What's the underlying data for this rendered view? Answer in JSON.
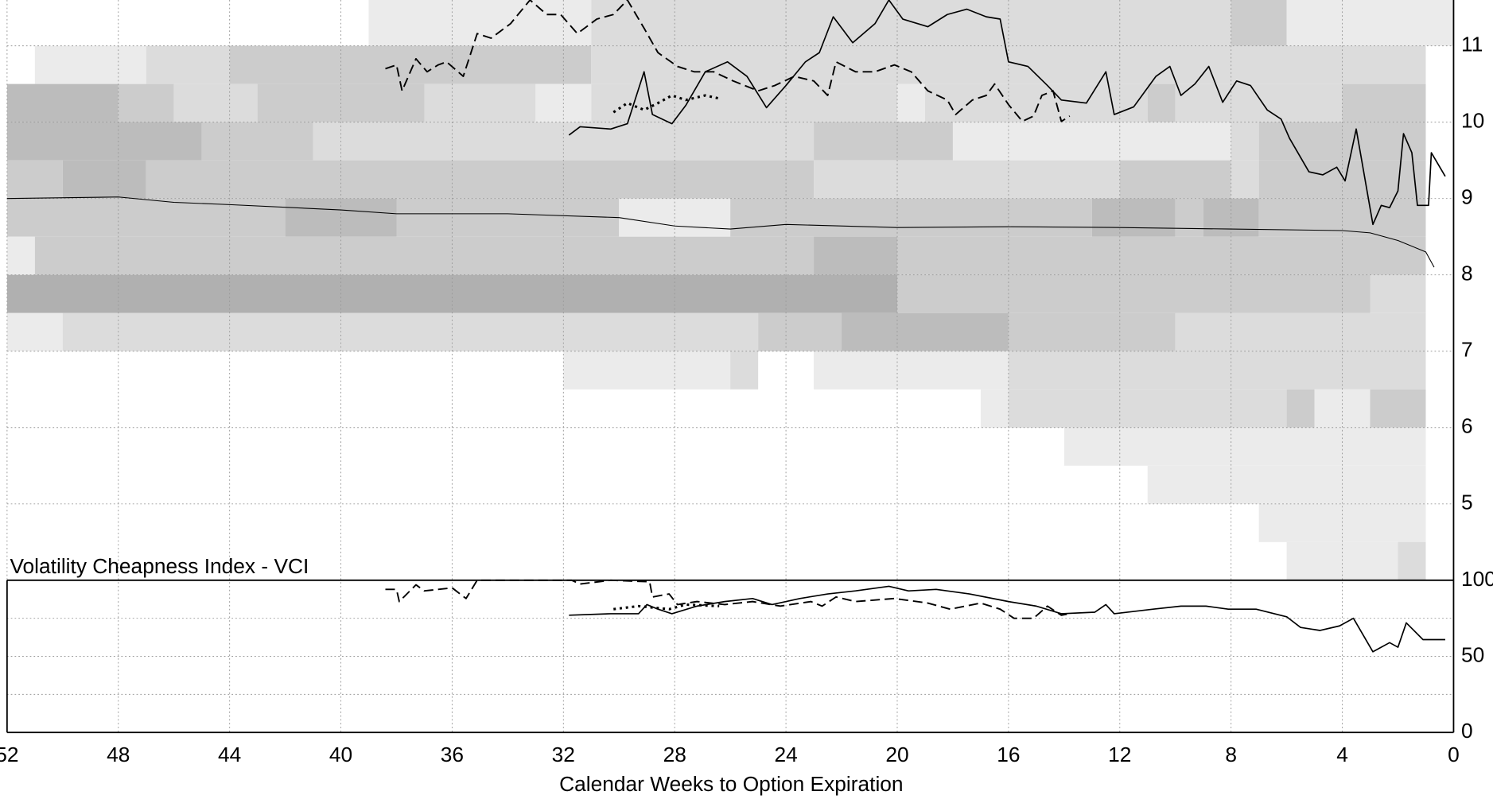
{
  "chart_data": [
    {
      "type": "heatmap",
      "ylim": [
        4,
        11.6
      ],
      "yticks": [
        5,
        6,
        7,
        8,
        9,
        10,
        11
      ],
      "grid": true,
      "heat_colors": [
        "#ebebeb",
        "#dcdcdc",
        "#cccccc",
        "#bcbcbc",
        "#b0b0b0"
      ],
      "cells": [
        [
          39,
          31,
          11,
          11.6,
          1
        ],
        [
          31,
          8,
          11,
          11.6,
          2
        ],
        [
          8,
          6,
          11,
          11.6,
          3
        ],
        [
          6,
          0,
          11,
          11.6,
          1
        ],
        [
          51,
          47,
          10.5,
          11,
          1
        ],
        [
          47,
          44,
          10.5,
          11,
          2
        ],
        [
          44,
          31,
          10.5,
          11,
          3
        ],
        [
          31,
          1,
          10.5,
          11,
          2
        ],
        [
          52,
          48,
          10,
          10.5,
          4
        ],
        [
          48,
          46,
          10,
          10.5,
          3
        ],
        [
          46,
          43,
          10,
          10.5,
          2
        ],
        [
          43,
          37,
          10,
          10.5,
          3
        ],
        [
          37,
          33,
          10,
          10.5,
          2
        ],
        [
          33,
          31,
          10,
          10.5,
          1
        ],
        [
          31,
          20,
          10,
          10.5,
          2
        ],
        [
          20,
          19,
          10,
          10.5,
          1
        ],
        [
          19,
          11,
          10,
          10.5,
          2
        ],
        [
          11,
          10,
          10,
          10.5,
          3
        ],
        [
          10,
          4,
          10,
          10.5,
          2
        ],
        [
          4,
          1,
          10,
          10.5,
          3
        ],
        [
          52,
          45,
          9.5,
          10,
          4
        ],
        [
          45,
          41,
          9.5,
          10,
          3
        ],
        [
          41,
          23,
          9.5,
          10,
          2
        ],
        [
          23,
          18,
          9.5,
          10,
          3
        ],
        [
          18,
          8,
          9.5,
          10,
          1
        ],
        [
          8,
          7,
          9.5,
          10,
          2
        ],
        [
          7,
          1,
          9.5,
          10,
          3
        ],
        [
          52,
          50,
          9,
          9.5,
          3
        ],
        [
          50,
          47,
          9,
          9.5,
          4
        ],
        [
          47,
          23,
          9,
          9.5,
          3
        ],
        [
          23,
          12,
          9,
          9.5,
          2
        ],
        [
          12,
          8,
          9,
          9.5,
          3
        ],
        [
          8,
          7,
          9,
          9.5,
          2
        ],
        [
          7,
          1,
          9,
          9.5,
          3
        ],
        [
          52,
          42,
          8.5,
          9,
          3
        ],
        [
          42,
          38,
          8.5,
          9,
          4
        ],
        [
          38,
          30,
          8.5,
          9,
          3
        ],
        [
          30,
          26,
          8.5,
          9,
          1
        ],
        [
          26,
          13,
          8.5,
          9,
          3
        ],
        [
          13,
          10,
          8.5,
          9,
          4
        ],
        [
          10,
          9,
          8.5,
          9,
          3
        ],
        [
          9,
          7,
          8.5,
          9,
          4
        ],
        [
          7,
          1,
          8.5,
          9,
          3
        ],
        [
          52,
          51,
          8,
          8.5,
          1
        ],
        [
          51,
          23,
          8,
          8.5,
          3
        ],
        [
          23,
          20,
          8,
          8.5,
          4
        ],
        [
          20,
          1,
          8,
          8.5,
          3
        ],
        [
          52,
          20,
          7.5,
          8,
          5
        ],
        [
          20,
          3,
          7.5,
          8,
          3
        ],
        [
          3,
          1,
          7.5,
          8,
          2
        ],
        [
          52,
          50,
          7,
          7.5,
          1
        ],
        [
          50,
          25,
          7,
          7.5,
          2
        ],
        [
          25,
          22,
          7,
          7.5,
          3
        ],
        [
          22,
          16,
          7,
          7.5,
          4
        ],
        [
          16,
          10,
          7,
          7.5,
          3
        ],
        [
          10,
          1,
          7,
          7.5,
          2
        ],
        [
          32,
          26,
          6.5,
          7,
          1
        ],
        [
          26,
          25,
          6.5,
          7,
          2
        ],
        [
          23,
          16,
          6.5,
          7,
          1
        ],
        [
          16,
          1,
          6.5,
          7,
          2
        ],
        [
          17,
          16,
          6,
          6.5,
          1
        ],
        [
          16,
          6,
          6,
          6.5,
          2
        ],
        [
          6,
          5,
          6,
          6.5,
          3
        ],
        [
          5,
          3,
          6,
          6.5,
          1
        ],
        [
          3,
          1,
          6,
          6.5,
          3
        ],
        [
          14,
          1,
          5.5,
          6,
          1
        ],
        [
          11,
          1,
          5,
          5.5,
          1
        ],
        [
          7,
          1,
          4.5,
          5,
          1
        ],
        [
          6,
          2,
          4,
          4.5,
          1
        ],
        [
          2,
          1,
          4,
          4.5,
          2
        ]
      ],
      "series": [
        {
          "style": "thin",
          "color": "#000000",
          "x": [
            52,
            48,
            46,
            44,
            40,
            38,
            34,
            30,
            28,
            26,
            24,
            20,
            16,
            12,
            8,
            4,
            3,
            2,
            1,
            0.7
          ],
          "values": [
            9.0,
            9.02,
            8.95,
            8.92,
            8.85,
            8.8,
            8.8,
            8.75,
            8.64,
            8.6,
            8.66,
            8.62,
            8.63,
            8.62,
            8.6,
            8.58,
            8.55,
            8.45,
            8.3,
            8.1
          ]
        },
        {
          "style": "solid",
          "color": "#000000",
          "x": [
            31.8,
            31.4,
            30.3,
            29.7,
            29.1,
            28.8,
            28.1,
            27.6,
            26.9,
            26.1,
            25.4,
            24.7,
            24.0,
            23.3,
            22.8,
            22.3,
            21.6,
            20.8,
            20.3,
            19.8,
            18.9,
            18.2,
            17.5,
            16.8,
            16.3,
            16.0,
            15.3,
            14.6,
            14.1,
            13.2,
            12.5,
            12.2,
            11.5,
            10.7,
            10.2,
            9.8,
            9.3,
            8.8,
            8.3,
            7.8,
            7.3,
            6.7,
            6.2,
            5.9,
            5.2,
            4.7,
            4.2,
            3.9,
            3.5,
            2.9,
            2.6,
            2.3,
            2.0,
            1.8,
            1.5,
            1.3,
            0.9,
            0.8,
            0.3
          ],
          "values": [
            9.83,
            9.94,
            9.91,
            9.98,
            10.66,
            10.1,
            9.98,
            10.22,
            10.66,
            10.79,
            10.6,
            10.19,
            10.48,
            10.79,
            10.91,
            11.38,
            11.04,
            11.29,
            11.6,
            11.35,
            11.25,
            11.41,
            11.48,
            11.38,
            11.35,
            10.79,
            10.73,
            10.48,
            10.29,
            10.25,
            10.66,
            10.1,
            10.2,
            10.6,
            10.73,
            10.35,
            10.5,
            10.73,
            10.26,
            10.54,
            10.48,
            10.16,
            10.04,
            9.79,
            9.35,
            9.31,
            9.41,
            9.23,
            9.91,
            8.66,
            8.91,
            8.88,
            9.1,
            9.85,
            9.6,
            8.91,
            8.91,
            9.6,
            9.29
          ]
        },
        {
          "style": "dashed",
          "color": "#000000",
          "x": [
            38.4,
            38.0,
            37.8,
            37.3,
            36.9,
            36.5,
            36.2,
            35.6,
            35.1,
            34.6,
            33.9,
            33.2,
            32.6,
            32.1,
            31.5,
            30.8,
            30.2,
            29.7,
            29.1,
            28.6,
            27.9,
            27.3,
            26.6,
            25.9,
            25.0,
            24.4,
            23.7,
            23.0,
            22.5,
            22.2,
            21.5,
            20.8,
            20.1,
            19.5,
            18.9,
            18.2,
            17.9,
            17.3,
            16.8,
            16.5,
            16.0,
            15.5,
            15.1,
            14.8,
            14.4,
            14.1,
            13.8
          ],
          "values": [
            10.7,
            10.75,
            10.41,
            10.83,
            10.66,
            10.75,
            10.79,
            10.6,
            11.16,
            11.1,
            11.29,
            11.6,
            11.41,
            11.41,
            11.16,
            11.35,
            11.41,
            11.6,
            11.23,
            10.91,
            10.73,
            10.66,
            10.66,
            10.54,
            10.41,
            10.48,
            10.6,
            10.54,
            10.35,
            10.79,
            10.66,
            10.66,
            10.75,
            10.66,
            10.41,
            10.29,
            10.1,
            10.29,
            10.35,
            10.5,
            10.23,
            10.01,
            10.08,
            10.35,
            10.41,
            10.01,
            10.08
          ]
        },
        {
          "style": "dotted",
          "color": "#000000",
          "x": [
            30.2,
            29.7,
            29.1,
            28.6,
            28.1,
            27.6,
            26.9,
            26.4
          ],
          "values": [
            10.13,
            10.25,
            10.16,
            10.25,
            10.35,
            10.29,
            10.35,
            10.31
          ]
        }
      ]
    },
    {
      "type": "line",
      "title": "Volatility Cheapness Index - VCI",
      "xlabel": "Calendar Weeks to Option Expiration",
      "xlim": [
        52,
        0
      ],
      "xticks": [
        52,
        48,
        44,
        40,
        36,
        32,
        28,
        24,
        20,
        16,
        12,
        8,
        4,
        0
      ],
      "ylim": [
        0,
        100
      ],
      "yticks": [
        0,
        50,
        100
      ],
      "minor_gridlines": [
        25,
        75
      ],
      "grid": true,
      "series": [
        {
          "style": "solid",
          "color": "#000000",
          "x": [
            31.8,
            30.3,
            29.3,
            29.0,
            28.6,
            28.1,
            27.2,
            26.2,
            25.2,
            24.5,
            23.5,
            22.5,
            21.5,
            20.3,
            19.6,
            18.6,
            17.4,
            16.0,
            15.0,
            14.1,
            12.9,
            12.5,
            12.2,
            10.8,
            9.8,
            8.9,
            8.1,
            7.1,
            6.0,
            5.5,
            4.8,
            4.1,
            3.6,
            2.9,
            2.3,
            2.0,
            1.7,
            1.1,
            0.3
          ],
          "values": [
            77,
            78,
            78,
            84,
            81,
            78,
            83,
            86,
            88,
            84,
            88,
            91,
            93,
            96,
            93,
            94,
            91,
            86,
            83,
            78,
            79,
            84,
            78,
            81,
            83,
            83,
            81,
            81,
            76,
            69,
            67,
            70,
            75,
            53,
            59,
            56,
            72,
            61,
            61
          ]
        },
        {
          "style": "dashed",
          "color": "#000000",
          "x": [
            38.4,
            38.0,
            37.9,
            37.3,
            37.0,
            36.5,
            36.0,
            35.5,
            35.1,
            34.4,
            33.1,
            31.7,
            31.4,
            30.3,
            28.9,
            28.8,
            28.2,
            27.9,
            27.2,
            26.2,
            25.2,
            24.2,
            23.1,
            22.7,
            22.2,
            21.5,
            20.1,
            18.9,
            18.1,
            17.0,
            16.3,
            15.8,
            15.1,
            14.6,
            14.1,
            13.8
          ],
          "values": [
            94,
            94,
            86,
            97,
            93,
            94,
            95,
            88,
            100,
            100,
            100,
            100,
            97.5,
            100,
            99,
            89,
            91,
            84,
            86,
            84,
            86,
            83,
            86,
            83,
            89,
            86,
            88,
            85,
            81,
            85,
            81,
            75,
            75,
            83,
            77,
            78
          ]
        },
        {
          "style": "dotted",
          "color": "#000000",
          "x": [
            30.2,
            29.3,
            28.2,
            27.6,
            26.4
          ],
          "values": [
            81,
            83,
            81,
            84,
            83
          ]
        }
      ]
    }
  ]
}
